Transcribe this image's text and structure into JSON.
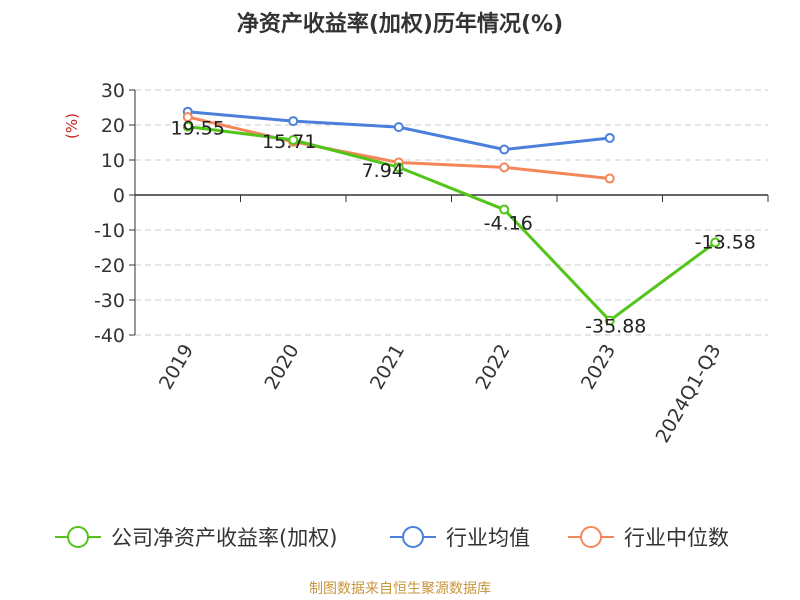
{
  "chart_data": {
    "type": "line",
    "title": "净资产收益率(加权)历年情况(%)",
    "ylabel": "(%)",
    "xlabel": "",
    "categories": [
      "2019",
      "2020",
      "2021",
      "2022",
      "2023",
      "2024Q1-Q3"
    ],
    "ylim": [
      -40,
      30
    ],
    "yticks": [
      30,
      20,
      10,
      0,
      -10,
      -20,
      -30,
      -40
    ],
    "grid": true,
    "legend_position": "bottom",
    "series": [
      {
        "name": "公司净资产收益率(加权)",
        "color": "#52c41a",
        "values": [
          19.55,
          15.71,
          7.94,
          -4.16,
          -35.88,
          -13.58
        ],
        "labels": [
          "19.55",
          "15.71",
          "7.94",
          "-4.16",
          "-35.88",
          "-13.58"
        ]
      },
      {
        "name": "行业均值",
        "color": "#4a7fdc",
        "values": [
          23.8,
          21.1,
          19.4,
          13.0,
          16.3,
          null
        ]
      },
      {
        "name": "行业中位数",
        "color": "#f4875a",
        "values": [
          22.3,
          15.2,
          9.3,
          7.9,
          4.7,
          null
        ]
      }
    ]
  },
  "source": "制图数据来自恒生聚源数据库"
}
